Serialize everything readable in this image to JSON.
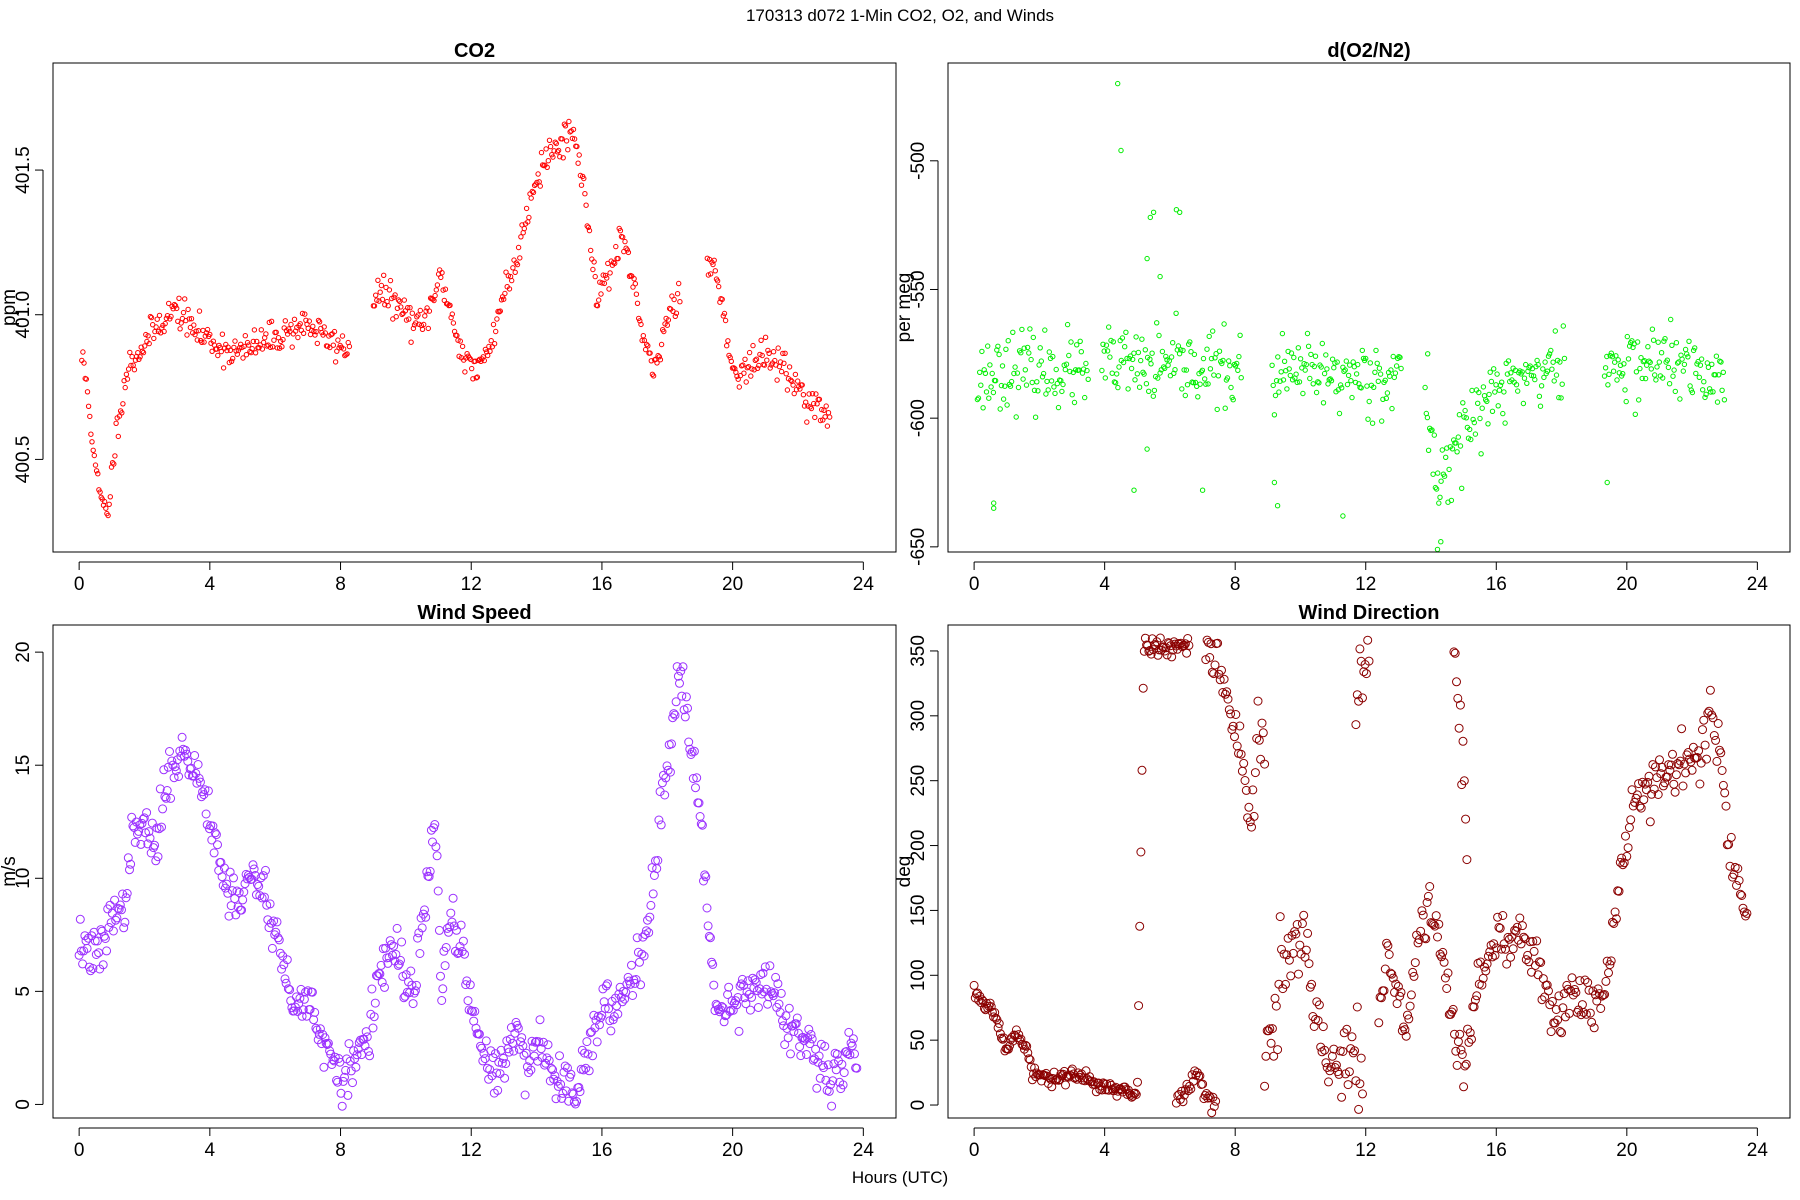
{
  "figure": {
    "suptitle": "170313   d072   1-Min CO2, O2, and Winds",
    "xlabel": "Hours (UTC)"
  },
  "chart_data": [
    {
      "id": "co2",
      "type": "scatter",
      "title": "CO2",
      "ylabel": "ppm",
      "color": "#ff0000",
      "marker_radius": 2.2,
      "xlim": [
        -0.8,
        25
      ],
      "ylim": [
        400.18,
        401.87
      ],
      "xticks": [
        0,
        4,
        8,
        12,
        16,
        20,
        24
      ],
      "xtick_labels": [
        "0",
        "4",
        "8",
        "12",
        "16",
        "20",
        "24"
      ],
      "yticks": [
        400.5,
        401.0,
        401.5
      ],
      "ytick_labels": [
        "400.5",
        "401.0",
        "401.5"
      ],
      "anchors": [
        [
          0.08,
          400.85
        ],
        [
          0.15,
          400.82
        ],
        [
          0.3,
          400.7
        ],
        [
          0.5,
          400.45
        ],
        [
          0.7,
          400.35
        ],
        [
          0.85,
          400.3
        ],
        [
          1.0,
          400.45
        ],
        [
          1.2,
          400.65
        ],
        [
          1.5,
          400.82
        ],
        [
          2.0,
          400.9
        ],
        [
          2.5,
          400.98
        ],
        [
          3.0,
          401.02
        ],
        [
          3.5,
          400.95
        ],
        [
          3.9,
          400.92
        ],
        [
          4.5,
          400.88
        ],
        [
          5.0,
          400.87
        ],
        [
          5.5,
          400.9
        ],
        [
          6.0,
          400.92
        ],
        [
          6.5,
          400.95
        ],
        [
          7.0,
          400.97
        ],
        [
          7.5,
          400.92
        ],
        [
          8.2,
          400.88
        ],
        [
          9.1,
          401.08
        ],
        [
          9.6,
          401.05
        ],
        [
          10.0,
          401.0
        ],
        [
          10.5,
          400.95
        ],
        [
          10.8,
          401.05
        ],
        [
          11.1,
          401.13
        ],
        [
          11.5,
          400.95
        ],
        [
          11.8,
          400.85
        ],
        [
          12.2,
          400.8
        ],
        [
          12.6,
          400.9
        ],
        [
          13.0,
          401.08
        ],
        [
          13.3,
          401.15
        ],
        [
          13.9,
          401.45
        ],
        [
          14.3,
          401.55
        ],
        [
          14.7,
          401.58
        ],
        [
          15.0,
          401.65
        ],
        [
          15.3,
          401.55
        ],
        [
          15.6,
          401.3
        ],
        [
          15.9,
          401.05
        ],
        [
          16.2,
          401.15
        ],
        [
          16.6,
          401.25
        ],
        [
          17.0,
          401.1
        ],
        [
          17.3,
          400.88
        ],
        [
          17.6,
          400.8
        ],
        [
          17.9,
          400.95
        ],
        [
          18.2,
          401.05
        ],
        [
          19.3,
          401.2
        ],
        [
          19.6,
          401.1
        ],
        [
          19.9,
          400.85
        ],
        [
          20.3,
          400.8
        ],
        [
          20.8,
          400.85
        ],
        [
          21.3,
          400.85
        ],
        [
          21.8,
          400.78
        ],
        [
          22.2,
          400.72
        ],
        [
          22.6,
          400.68
        ],
        [
          23.0,
          400.62
        ]
      ],
      "gaps": [
        [
          8.3,
          9.0
        ],
        [
          18.4,
          19.2
        ]
      ],
      "noise": 0.028,
      "seed": 11
    },
    {
      "id": "o2",
      "type": "scatter",
      "title": "d(O2/N2)",
      "ylabel": "per meg",
      "color": "#00ee00",
      "marker_radius": 2.2,
      "xlim": [
        -0.8,
        25
      ],
      "ylim": [
        -652,
        -462
      ],
      "xticks": [
        0,
        4,
        8,
        12,
        16,
        20,
        24
      ],
      "xtick_labels": [
        "0",
        "4",
        "8",
        "12",
        "16",
        "20",
        "24"
      ],
      "yticks": [
        -650,
        -600,
        -550,
        -500
      ],
      "ytick_labels": [
        "-650",
        "-600",
        "-550",
        "-500"
      ],
      "anchors": [
        [
          0.1,
          -585
        ],
        [
          1.0,
          -580
        ],
        [
          2.0,
          -582
        ],
        [
          3.0,
          -581
        ],
        [
          3.4,
          -584
        ],
        [
          4.0,
          -579
        ],
        [
          5.0,
          -580
        ],
        [
          6.0,
          -581
        ],
        [
          7.0,
          -580
        ],
        [
          8.0,
          -582
        ],
        [
          9.2,
          -585
        ],
        [
          10.0,
          -582
        ],
        [
          11.0,
          -584
        ],
        [
          12.0,
          -583
        ],
        [
          13.0,
          -584
        ],
        [
          13.9,
          -600
        ],
        [
          14.2,
          -625
        ],
        [
          14.6,
          -615
        ],
        [
          15.0,
          -605
        ],
        [
          15.6,
          -595
        ],
        [
          16.2,
          -588
        ],
        [
          16.8,
          -583
        ],
        [
          17.5,
          -582
        ],
        [
          18.0,
          -580
        ],
        [
          19.4,
          -580
        ],
        [
          20.0,
          -580
        ],
        [
          21.0,
          -577
        ],
        [
          22.0,
          -582
        ],
        [
          23.0,
          -585
        ]
      ],
      "gaps": [
        [
          3.5,
          3.9
        ],
        [
          8.2,
          9.1
        ],
        [
          13.1,
          13.8
        ],
        [
          18.1,
          19.3
        ]
      ],
      "noise": 7,
      "outliers": [
        [
          4.4,
          -470
        ],
        [
          4.5,
          -496
        ],
        [
          5.4,
          -522
        ],
        [
          5.5,
          -520
        ],
        [
          5.3,
          -538
        ],
        [
          6.2,
          -519
        ],
        [
          6.3,
          -520
        ],
        [
          5.7,
          -545
        ],
        [
          0.6,
          -633
        ],
        [
          0.6,
          -635
        ],
        [
          4.9,
          -628
        ],
        [
          5.3,
          -612
        ],
        [
          7.0,
          -628
        ],
        [
          11.3,
          -638
        ],
        [
          9.2,
          -625
        ],
        [
          9.3,
          -634
        ],
        [
          13.9,
          -575
        ],
        [
          19.4,
          -625
        ],
        [
          14.2,
          -651
        ],
        [
          14.3,
          -648
        ]
      ],
      "seed": 23
    },
    {
      "id": "ws",
      "type": "scatter",
      "title": "Wind Speed",
      "ylabel": "m/s",
      "color": "#9b30ff",
      "marker_radius": 4,
      "xlim": [
        -0.8,
        25
      ],
      "ylim": [
        -0.6,
        21.2
      ],
      "xticks": [
        0,
        4,
        8,
        12,
        16,
        20,
        24
      ],
      "xtick_labels": [
        "0",
        "4",
        "8",
        "12",
        "16",
        "20",
        "24"
      ],
      "yticks": [
        0,
        5,
        10,
        15,
        20
      ],
      "ytick_labels": [
        "0",
        "5",
        "10",
        "15",
        "20"
      ],
      "anchors": [
        [
          0.0,
          7.2
        ],
        [
          0.5,
          6.5
        ],
        [
          0.8,
          7.0
        ],
        [
          1.0,
          9.0
        ],
        [
          1.3,
          8.0
        ],
        [
          1.6,
          11.5
        ],
        [
          2.0,
          12.5
        ],
        [
          2.3,
          11.0
        ],
        [
          2.7,
          14.5
        ],
        [
          3.0,
          15.5
        ],
        [
          3.5,
          15.0
        ],
        [
          4.0,
          13.0
        ],
        [
          4.4,
          10.0
        ],
        [
          4.8,
          9.0
        ],
        [
          5.3,
          10.0
        ],
        [
          5.7,
          9.5
        ],
        [
          6.2,
          6.5
        ],
        [
          6.6,
          4.0
        ],
        [
          7.0,
          5.0
        ],
        [
          7.5,
          2.5
        ],
        [
          8.0,
          1.0
        ],
        [
          8.5,
          2.0
        ],
        [
          8.9,
          3.5
        ],
        [
          9.3,
          6.0
        ],
        [
          9.7,
          7.0
        ],
        [
          10.0,
          5.0
        ],
        [
          10.3,
          5.5
        ],
        [
          10.6,
          9.0
        ],
        [
          10.9,
          12.5
        ],
        [
          11.1,
          5.0
        ],
        [
          11.4,
          8.5
        ],
        [
          11.7,
          7.0
        ],
        [
          12.0,
          4.0
        ],
        [
          12.4,
          2.0
        ],
        [
          12.8,
          1.5
        ],
        [
          13.3,
          3.0
        ],
        [
          13.7,
          2.0
        ],
        [
          14.1,
          2.8
        ],
        [
          14.4,
          1.5
        ],
        [
          14.8,
          1.0
        ],
        [
          15.2,
          0.8
        ],
        [
          15.6,
          2.5
        ],
        [
          16.0,
          4.0
        ],
        [
          16.4,
          4.2
        ],
        [
          16.8,
          5.5
        ],
        [
          17.2,
          6.5
        ],
        [
          17.5,
          9.0
        ],
        [
          17.8,
          13.0
        ],
        [
          18.1,
          16.0
        ],
        [
          18.4,
          19.5
        ],
        [
          18.7,
          16.5
        ],
        [
          19.0,
          13.0
        ],
        [
          19.3,
          7.0
        ],
        [
          19.6,
          4.0
        ],
        [
          20.0,
          4.5
        ],
        [
          20.5,
          5.2
        ],
        [
          21.0,
          5.3
        ],
        [
          21.3,
          5.0
        ],
        [
          21.6,
          3.5
        ],
        [
          22.0,
          3.0
        ],
        [
          22.5,
          2.0
        ],
        [
          23.0,
          1.0
        ],
        [
          23.4,
          1.8
        ],
        [
          23.8,
          2.8
        ]
      ],
      "gaps": [],
      "noise": 0.55,
      "seed": 37
    },
    {
      "id": "wd",
      "type": "scatter",
      "title": "Wind Direction",
      "ylabel": "deg",
      "color": "#8b0000",
      "marker_radius": 4,
      "xlim": [
        -0.8,
        25
      ],
      "ylim": [
        -10,
        370
      ],
      "xticks": [
        0,
        4,
        8,
        12,
        16,
        20,
        24
      ],
      "xtick_labels": [
        "0",
        "4",
        "8",
        "12",
        "16",
        "20",
        "24"
      ],
      "yticks": [
        0,
        50,
        100,
        150,
        200,
        250,
        300,
        350
      ],
      "ytick_labels": [
        "0",
        "50",
        "100",
        "150",
        "200",
        "250",
        "300",
        "350"
      ],
      "anchors": [
        [
          0.0,
          88
        ],
        [
          0.3,
          78
        ],
        [
          0.6,
          75
        ],
        [
          0.8,
          55
        ],
        [
          1.0,
          45
        ],
        [
          1.3,
          55
        ],
        [
          1.6,
          45
        ],
        [
          1.8,
          22
        ],
        [
          2.5,
          22
        ],
        [
          3.0,
          22
        ],
        [
          3.5,
          20
        ],
        [
          4.0,
          14
        ],
        [
          4.5,
          10
        ],
        [
          5.0,
          8
        ],
        [
          5.2,
          355
        ],
        [
          5.8,
          352
        ],
        [
          6.2,
          355
        ],
        [
          6.6,
          356
        ]
      ],
      "gaps": [],
      "noise": 3,
      "segments": [
        {
          "anchors": [
            [
              7.1,
              355
            ],
            [
              7.4,
              345
            ],
            [
              7.7,
              320
            ],
            [
              7.9,
              295
            ],
            [
              8.1,
              280
            ],
            [
              8.3,
              250
            ],
            [
              8.5,
              215
            ],
            [
              8.7,
              300
            ],
            [
              8.9,
              270
            ]
          ],
          "noise": 12
        },
        {
          "anchors": [
            [
              6.2,
              3
            ],
            [
              6.5,
              10
            ],
            [
              6.8,
              25
            ],
            [
              7.1,
              5
            ],
            [
              7.4,
              2
            ]
          ],
          "noise": 4
        },
        {
          "anchors": [
            [
              8.9,
              20
            ],
            [
              9.2,
              60
            ],
            [
              9.5,
              120
            ],
            [
              9.8,
              110
            ],
            [
              10.1,
              130
            ],
            [
              10.4,
              75
            ],
            [
              10.7,
              40
            ],
            [
              11.0,
              30
            ],
            [
              11.3,
              25
            ],
            [
              11.6,
              45
            ],
            [
              11.9,
              15
            ]
          ],
          "noise": 18
        },
        {
          "anchors": [
            [
              11.7,
              300
            ],
            [
              11.9,
              330
            ],
            [
              12.1,
              345
            ]
          ],
          "noise": 15
        },
        {
          "anchors": [
            [
              12.4,
              60
            ],
            [
              12.7,
              120
            ],
            [
              13.0,
              80
            ],
            [
              13.3,
              60
            ],
            [
              13.6,
              130
            ],
            [
              13.9,
              150
            ],
            [
              14.2,
              140
            ],
            [
              14.5,
              100
            ],
            [
              14.8,
              40
            ],
            [
              15.1,
              30
            ],
            [
              15.4,
              90
            ],
            [
              15.7,
              110
            ],
            [
              16.0,
              130
            ],
            [
              16.4,
              120
            ],
            [
              16.8,
              130
            ],
            [
              17.2,
              110
            ],
            [
              17.5,
              90
            ],
            [
              17.8,
              70
            ],
            [
              18.2,
              85
            ],
            [
              18.6,
              80
            ],
            [
              19.0,
              78
            ],
            [
              19.4,
              100
            ],
            [
              19.7,
              160
            ],
            [
              20.0,
              210
            ],
            [
              20.3,
              240
            ],
            [
              20.8,
              250
            ],
            [
              21.3,
              255
            ],
            [
              21.8,
              265
            ],
            [
              22.3,
              275
            ],
            [
              22.6,
              300
            ],
            [
              22.9,
              270
            ],
            [
              23.1,
              195
            ],
            [
              23.4,
              170
            ],
            [
              23.7,
              140
            ]
          ],
          "noise": 10
        },
        {
          "anchors": [
            [
              14.7,
              350
            ],
            [
              14.9,
              300
            ],
            [
              15.0,
              250
            ],
            [
              15.1,
              200
            ]
          ],
          "noise": 18
        }
      ],
      "seed": 53
    }
  ]
}
